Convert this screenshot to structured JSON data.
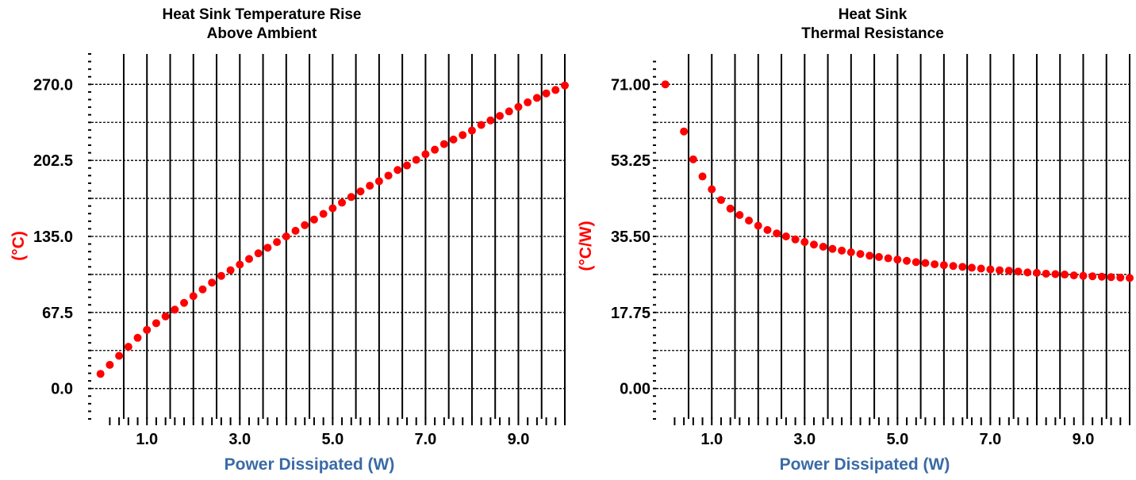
{
  "chart_data": [
    {
      "type": "scatter",
      "title": "Heat Sink Temperature Rise",
      "subtitle": "Above Ambient",
      "xlabel": "Power Dissipated (W)",
      "ylabel": "(°C)",
      "xlim": [
        -0.2,
        10.0
      ],
      "ylim": [
        -27,
        297
      ],
      "xticks": [
        "1.0",
        "3.0",
        "5.0",
        "7.0",
        "9.0"
      ],
      "xtick_values": [
        1,
        3,
        5,
        7,
        9
      ],
      "yticks": [
        "0.0",
        "67.5",
        "135.0",
        "202.5",
        "270.0"
      ],
      "ytick_values": [
        0,
        67.5,
        135,
        202.5,
        270
      ],
      "grid": true,
      "marker_color": "#ff0000",
      "series": [
        {
          "x": [
            0.0,
            0.2,
            0.4,
            0.6,
            0.8,
            1.0,
            1.2,
            1.4,
            1.6,
            1.8,
            2.0,
            2.2,
            2.4,
            2.6,
            2.8,
            3.0,
            3.2,
            3.4,
            3.6,
            3.8,
            4.0,
            4.2,
            4.4,
            4.6,
            4.8,
            5.0,
            5.2,
            5.4,
            5.6,
            5.8,
            6.0,
            6.2,
            6.4,
            6.6,
            6.8,
            7.0,
            7.2,
            7.4,
            7.6,
            7.8,
            8.0,
            8.2,
            8.4,
            8.6,
            8.8,
            9.0,
            9.2,
            9.4,
            9.6,
            9.8,
            10.0
          ],
          "y": [
            13,
            21,
            29,
            37,
            45,
            52,
            58,
            64,
            70,
            76,
            82,
            88,
            94,
            100,
            105,
            110,
            115,
            120,
            125,
            130,
            135,
            140,
            145,
            150,
            155,
            160,
            165,
            170,
            175,
            180,
            184,
            189,
            194,
            198,
            203,
            208,
            212,
            217,
            221,
            225,
            229,
            234,
            238,
            242,
            246,
            250,
            254,
            258,
            262,
            265,
            269
          ]
        }
      ]
    },
    {
      "type": "scatter",
      "title": "Heat Sink",
      "subtitle": "Thermal Resistance",
      "xlabel": "Power Dissipated (W)",
      "ylabel": "(°C/W)",
      "xlim": [
        -0.2,
        10.0
      ],
      "ylim": [
        -7.1,
        78.1
      ],
      "xticks": [
        "1.0",
        "3.0",
        "5.0",
        "7.0",
        "9.0"
      ],
      "xtick_values": [
        1,
        3,
        5,
        7,
        9
      ],
      "yticks": [
        "0.00",
        "17.75",
        "35.50",
        "53.25",
        "71.00"
      ],
      "ytick_values": [
        0,
        17.75,
        35.5,
        53.25,
        71
      ],
      "grid": true,
      "marker_color": "#ff0000",
      "series": [
        {
          "x": [
            0.0,
            0.4,
            0.6,
            0.8,
            1.0,
            1.2,
            1.4,
            1.6,
            1.8,
            2.0,
            2.2,
            2.4,
            2.6,
            2.8,
            3.0,
            3.2,
            3.4,
            3.6,
            3.8,
            4.0,
            4.2,
            4.4,
            4.6,
            4.8,
            5.0,
            5.2,
            5.4,
            5.6,
            5.8,
            6.0,
            6.2,
            6.4,
            6.6,
            6.8,
            7.0,
            7.2,
            7.4,
            7.6,
            7.8,
            8.0,
            8.2,
            8.4,
            8.6,
            8.8,
            9.0,
            9.2,
            9.4,
            9.6,
            9.8,
            10.0
          ],
          "y": [
            71.0,
            60.0,
            53.5,
            49.5,
            46.5,
            44.0,
            42.0,
            40.5,
            39.2,
            38.0,
            37.0,
            36.2,
            35.5,
            34.8,
            34.2,
            33.6,
            33.1,
            32.6,
            32.2,
            31.8,
            31.4,
            31.0,
            30.7,
            30.4,
            30.1,
            29.8,
            29.5,
            29.3,
            29.0,
            28.8,
            28.6,
            28.4,
            28.2,
            28.0,
            27.8,
            27.6,
            27.5,
            27.3,
            27.1,
            27.0,
            26.8,
            26.7,
            26.6,
            26.4,
            26.3,
            26.2,
            26.1,
            26.0,
            25.9,
            25.8
          ]
        }
      ]
    }
  ]
}
